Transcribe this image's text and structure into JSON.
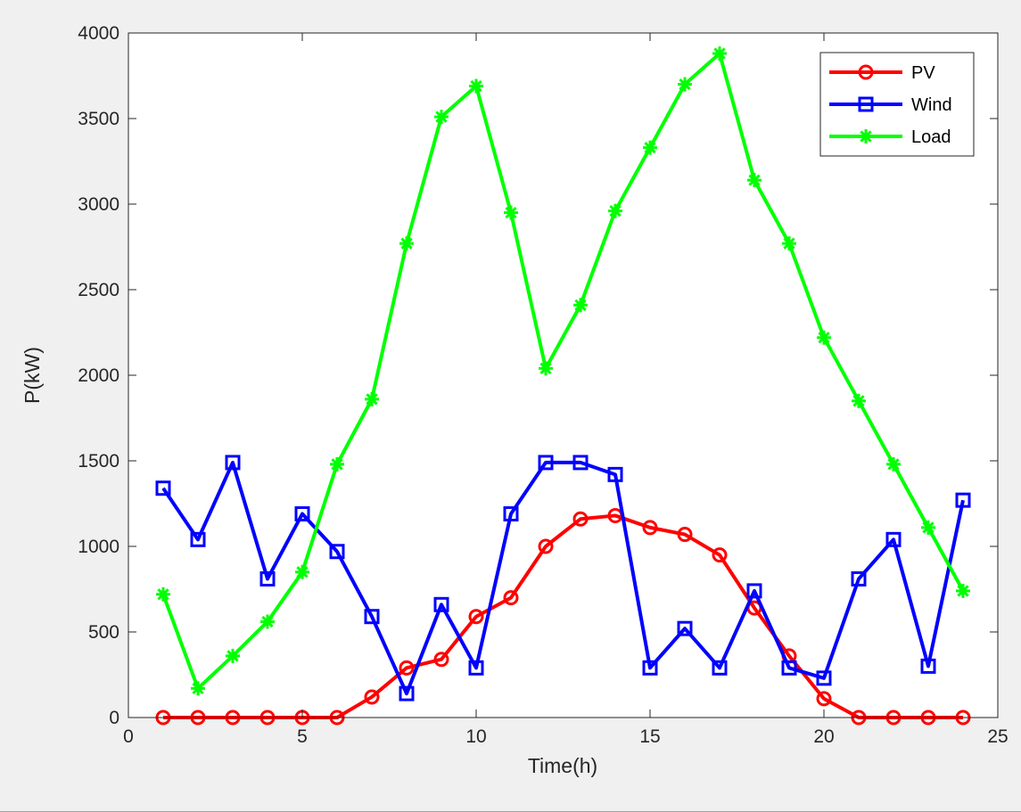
{
  "chart_data": {
    "type": "line",
    "xlabel": "Time(h)",
    "ylabel": "P(kW)",
    "xlim": [
      0,
      25
    ],
    "ylim": [
      0,
      4000
    ],
    "xticks": [
      0,
      5,
      10,
      15,
      20,
      25
    ],
    "yticks": [
      0,
      500,
      1000,
      1500,
      2000,
      2500,
      3000,
      3500,
      4000
    ],
    "grid": false,
    "legend_position": "top-right",
    "x": [
      1,
      2,
      3,
      4,
      5,
      6,
      7,
      8,
      9,
      10,
      11,
      12,
      13,
      14,
      15,
      16,
      17,
      18,
      19,
      20,
      21,
      22,
      23,
      24
    ],
    "series": [
      {
        "name": "PV",
        "color": "#ff0000",
        "marker": "circle",
        "values": [
          0,
          0,
          0,
          0,
          0,
          0,
          120,
          290,
          340,
          590,
          700,
          1000,
          1160,
          1180,
          1110,
          1070,
          950,
          640,
          360,
          110,
          0,
          0,
          0,
          0
        ]
      },
      {
        "name": "Wind",
        "color": "#0000ff",
        "marker": "square",
        "values": [
          1340,
          1040,
          1490,
          810,
          1190,
          970,
          590,
          140,
          660,
          290,
          1190,
          1490,
          1490,
          1420,
          290,
          520,
          290,
          740,
          290,
          230,
          810,
          1040,
          300,
          1270
        ]
      },
      {
        "name": "Load",
        "color": "#00ff00",
        "marker": "star",
        "values": [
          720,
          170,
          360,
          560,
          850,
          1480,
          1860,
          2770,
          3510,
          3690,
          2950,
          2040,
          2410,
          2960,
          3330,
          3700,
          3880,
          3140,
          2770,
          2220,
          1850,
          1480,
          1110,
          740
        ]
      }
    ]
  }
}
